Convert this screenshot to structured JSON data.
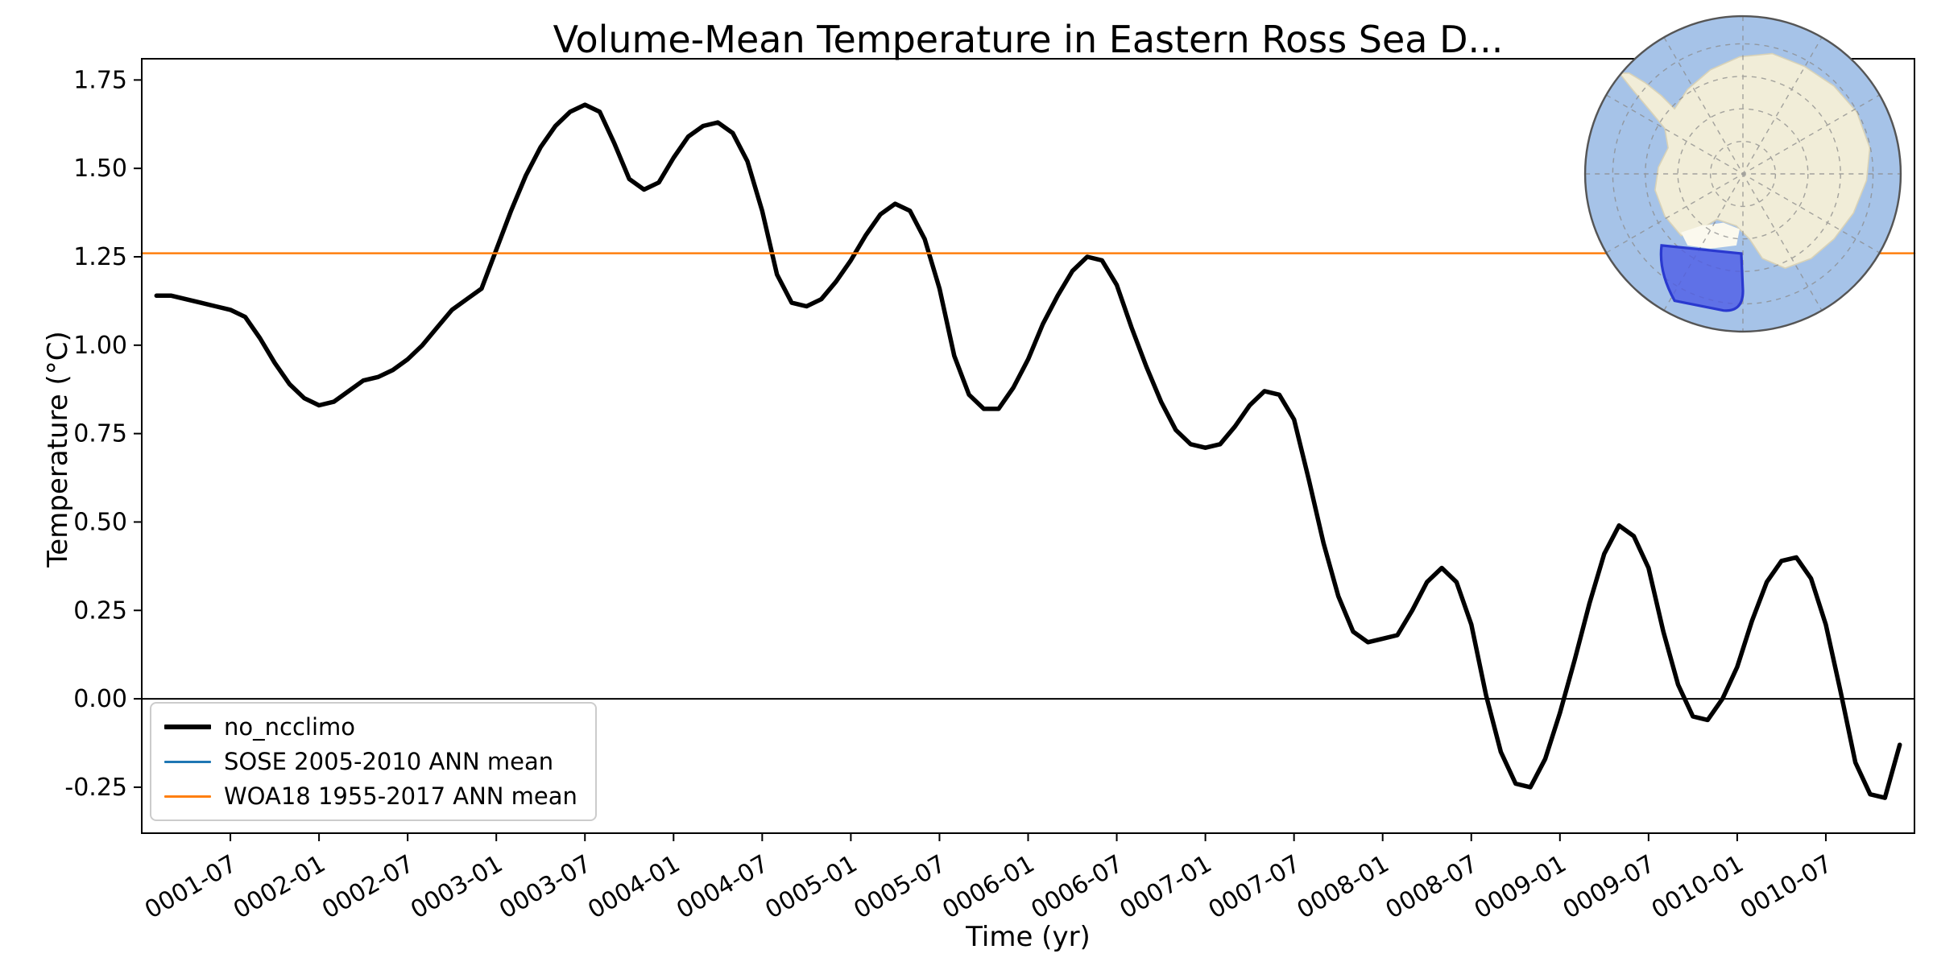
{
  "figure": {
    "background_color": "#ffffff"
  },
  "chart_data": {
    "type": "line",
    "title": "Volume-Mean Temperature in Eastern Ross Sea D...",
    "xlabel": "Time (yr)",
    "ylabel": "Temperature (°C)",
    "grid": false,
    "x_unit": "months since 0001-01 (1 = 0001-01)",
    "xlim": [
      1,
      121
    ],
    "ylim": [
      -0.38,
      1.81
    ],
    "y_ticks": [
      1.75,
      1.5,
      1.25,
      1.0,
      0.75,
      0.5,
      0.25,
      0.0,
      -0.25
    ],
    "x_ticks": [
      {
        "m": 7,
        "label": "0001-07"
      },
      {
        "m": 13,
        "label": "0002-01"
      },
      {
        "m": 19,
        "label": "0002-07"
      },
      {
        "m": 25,
        "label": "0003-01"
      },
      {
        "m": 31,
        "label": "0003-07"
      },
      {
        "m": 37,
        "label": "0004-01"
      },
      {
        "m": 43,
        "label": "0004-07"
      },
      {
        "m": 49,
        "label": "0005-01"
      },
      {
        "m": 55,
        "label": "0005-07"
      },
      {
        "m": 61,
        "label": "0006-01"
      },
      {
        "m": 67,
        "label": "0006-07"
      },
      {
        "m": 73,
        "label": "0007-01"
      },
      {
        "m": 79,
        "label": "0007-07"
      },
      {
        "m": 85,
        "label": "0008-01"
      },
      {
        "m": 91,
        "label": "0008-07"
      },
      {
        "m": 97,
        "label": "0009-01"
      },
      {
        "m": 103,
        "label": "0009-07"
      },
      {
        "m": 109,
        "label": "0010-01"
      },
      {
        "m": 115,
        "label": "0010-07"
      }
    ],
    "series": [
      {
        "name": "no_ncclimo",
        "color": "#000000",
        "width": 5.5,
        "points": [
          [
            2,
            1.14
          ],
          [
            3,
            1.14
          ],
          [
            4,
            1.13
          ],
          [
            5,
            1.12
          ],
          [
            6,
            1.11
          ],
          [
            7,
            1.1
          ],
          [
            8,
            1.08
          ],
          [
            9,
            1.02
          ],
          [
            10,
            0.95
          ],
          [
            11,
            0.89
          ],
          [
            12,
            0.85
          ],
          [
            13,
            0.83
          ],
          [
            14,
            0.84
          ],
          [
            15,
            0.87
          ],
          [
            16,
            0.9
          ],
          [
            17,
            0.91
          ],
          [
            18,
            0.93
          ],
          [
            19,
            0.96
          ],
          [
            20,
            1.0
          ],
          [
            21,
            1.05
          ],
          [
            22,
            1.1
          ],
          [
            23,
            1.13
          ],
          [
            24,
            1.16
          ],
          [
            25,
            1.27
          ],
          [
            26,
            1.38
          ],
          [
            27,
            1.48
          ],
          [
            28,
            1.56
          ],
          [
            29,
            1.62
          ],
          [
            30,
            1.66
          ],
          [
            31,
            1.68
          ],
          [
            32,
            1.66
          ],
          [
            33,
            1.57
          ],
          [
            34,
            1.47
          ],
          [
            35,
            1.44
          ],
          [
            36,
            1.46
          ],
          [
            37,
            1.53
          ],
          [
            38,
            1.59
          ],
          [
            39,
            1.62
          ],
          [
            40,
            1.63
          ],
          [
            41,
            1.6
          ],
          [
            42,
            1.52
          ],
          [
            43,
            1.38
          ],
          [
            44,
            1.2
          ],
          [
            45,
            1.12
          ],
          [
            46,
            1.11
          ],
          [
            47,
            1.13
          ],
          [
            48,
            1.18
          ],
          [
            49,
            1.24
          ],
          [
            50,
            1.31
          ],
          [
            51,
            1.37
          ],
          [
            52,
            1.4
          ],
          [
            53,
            1.38
          ],
          [
            54,
            1.3
          ],
          [
            55,
            1.16
          ],
          [
            56,
            0.97
          ],
          [
            57,
            0.86
          ],
          [
            58,
            0.82
          ],
          [
            59,
            0.82
          ],
          [
            60,
            0.88
          ],
          [
            61,
            0.96
          ],
          [
            62,
            1.06
          ],
          [
            63,
            1.14
          ],
          [
            64,
            1.21
          ],
          [
            65,
            1.25
          ],
          [
            66,
            1.24
          ],
          [
            67,
            1.17
          ],
          [
            68,
            1.05
          ],
          [
            69,
            0.94
          ],
          [
            70,
            0.84
          ],
          [
            71,
            0.76
          ],
          [
            72,
            0.72
          ],
          [
            73,
            0.71
          ],
          [
            74,
            0.72
          ],
          [
            75,
            0.77
          ],
          [
            76,
            0.83
          ],
          [
            77,
            0.87
          ],
          [
            78,
            0.86
          ],
          [
            79,
            0.79
          ],
          [
            80,
            0.62
          ],
          [
            81,
            0.44
          ],
          [
            82,
            0.29
          ],
          [
            83,
            0.19
          ],
          [
            84,
            0.16
          ],
          [
            85,
            0.17
          ],
          [
            86,
            0.18
          ],
          [
            87,
            0.25
          ],
          [
            88,
            0.33
          ],
          [
            89,
            0.37
          ],
          [
            90,
            0.33
          ],
          [
            91,
            0.21
          ],
          [
            92,
            0.01
          ],
          [
            93,
            -0.15
          ],
          [
            94,
            -0.24
          ],
          [
            95,
            -0.25
          ],
          [
            96,
            -0.17
          ],
          [
            97,
            -0.04
          ],
          [
            98,
            0.11
          ],
          [
            99,
            0.27
          ],
          [
            100,
            0.41
          ],
          [
            101,
            0.49
          ],
          [
            102,
            0.46
          ],
          [
            103,
            0.37
          ],
          [
            104,
            0.19
          ],
          [
            105,
            0.04
          ],
          [
            106,
            -0.05
          ],
          [
            107,
            -0.06
          ],
          [
            108,
            0.0
          ],
          [
            109,
            0.09
          ],
          [
            110,
            0.22
          ],
          [
            111,
            0.33
          ],
          [
            112,
            0.39
          ],
          [
            113,
            0.4
          ],
          [
            114,
            0.34
          ],
          [
            115,
            0.21
          ],
          [
            116,
            0.02
          ],
          [
            117,
            -0.18
          ],
          [
            118,
            -0.27
          ],
          [
            119,
            -0.28
          ],
          [
            120,
            -0.13
          ]
        ]
      },
      {
        "name": "SOSE 2005-2010 ANN mean",
        "color": "#1f77b4",
        "width": 2.5,
        "points": []
      },
      {
        "name": "WOA18 1955-2017 ANN mean",
        "color": "#ff7f0e",
        "width": 2.5,
        "constant": 1.26
      }
    ],
    "reference_lines": [
      {
        "value": 0.0,
        "color": "#000000",
        "width": 2
      }
    ],
    "legend_position": "lower left"
  },
  "inset_map": {
    "projection": "south-polar-stereographic",
    "ocean_color": "#a6c3e8",
    "land_color": "#f1edd8",
    "ice_shelf_color": "#fbf9ee",
    "highlight_color": "#4d5ce6",
    "highlight_border_color": "#2a39cf",
    "graticule_color": "#8a8a8a",
    "border_color": "#555555"
  }
}
